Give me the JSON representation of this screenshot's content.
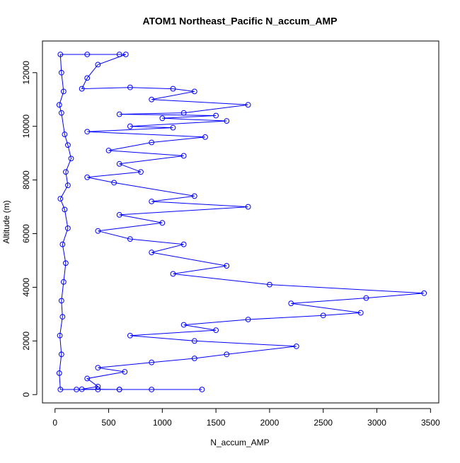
{
  "chart_data": {
    "type": "line",
    "markers": true,
    "title": "ATOM1 Northeast_Pacific N_accum_AMP",
    "x_label": "N_accum_AMP",
    "y_label": "Altitude (m)",
    "color": "#0000ff",
    "x": [
      1370,
      900,
      600,
      400,
      200,
      50,
      40,
      60,
      45,
      70,
      60,
      80,
      100,
      70,
      120,
      90,
      50,
      120,
      100,
      150,
      120,
      90,
      60,
      40,
      80,
      60,
      50,
      300,
      600,
      660,
      400,
      300,
      250,
      700,
      1100,
      1300,
      900,
      1800,
      1200,
      600,
      1500,
      1000,
      1600,
      700,
      1100,
      300,
      1400,
      900,
      500,
      1200,
      600,
      800,
      300,
      550,
      1300,
      900,
      1800,
      600,
      1000,
      400,
      700,
      1200,
      900,
      1600,
      1100,
      2000,
      3440,
      2900,
      2200,
      2850,
      2500,
      1800,
      1200,
      1500,
      700,
      1300,
      2250,
      1600,
      1300,
      900,
      400,
      650,
      300,
      400,
      250,
      600
    ],
    "values": [
      190,
      190,
      190,
      190,
      190,
      190,
      800,
      1500,
      2200,
      2900,
      3500,
      4200,
      4900,
      5600,
      6200,
      6900,
      7300,
      7800,
      8300,
      8800,
      9300,
      9700,
      10500,
      10800,
      11300,
      12000,
      12680,
      12680,
      12680,
      12680,
      12300,
      11800,
      11400,
      11450,
      11400,
      11300,
      11000,
      10800,
      10500,
      10450,
      10400,
      10300,
      10200,
      10000,
      9950,
      9800,
      9600,
      9400,
      9100,
      8900,
      8600,
      8300,
      8100,
      7900,
      7400,
      7200,
      7000,
      6700,
      6400,
      6100,
      5800,
      5600,
      5300,
      4800,
      4500,
      4100,
      3780,
      3600,
      3400,
      3050,
      2950,
      2800,
      2600,
      2400,
      2200,
      2000,
      1800,
      1500,
      1350,
      1200,
      1000,
      850,
      600,
      300,
      200,
      190
    ],
    "xlim": [
      -117,
      3577
    ],
    "ylim": [
      -310,
      13180
    ],
    "xticks": [
      0,
      500,
      1000,
      1500,
      2000,
      2500,
      3000,
      3500
    ],
    "yticks": [
      0,
      2000,
      4000,
      6000,
      8000,
      10000,
      12000
    ]
  }
}
